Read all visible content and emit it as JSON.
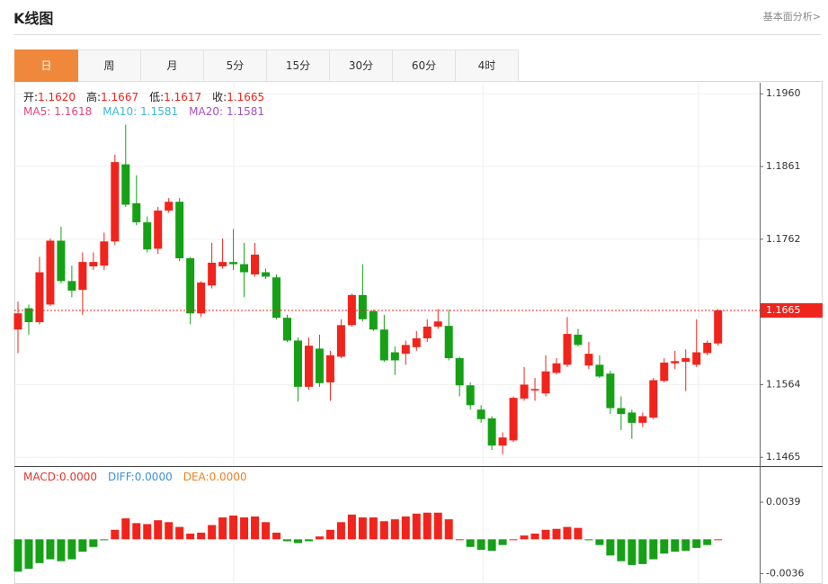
{
  "header": {
    "title": "K线图",
    "link": "基本面分析>"
  },
  "tabs": [
    {
      "label": "日",
      "active": true
    },
    {
      "label": "周"
    },
    {
      "label": "月"
    },
    {
      "label": "5分"
    },
    {
      "label": "15分"
    },
    {
      "label": "30分"
    },
    {
      "label": "60分"
    },
    {
      "label": "4时"
    }
  ],
  "chart_data": [
    {
      "type": "candlestick",
      "legend": [
        {
          "label": "开:",
          "value": "1.1620"
        },
        {
          "label": "高:",
          "value": "1.1667"
        },
        {
          "label": "低:",
          "value": "1.1617"
        },
        {
          "label": "收:",
          "value": "1.1665"
        }
      ],
      "ma_legend": [
        {
          "name": "MA5:",
          "value": "1.1618",
          "color": "#e5457d"
        },
        {
          "name": "MA10:",
          "value": "1.1581",
          "color": "#3bb8d6"
        },
        {
          "name": "MA20:",
          "value": "1.1581",
          "color": "#a54fc4"
        }
      ],
      "up_color": "#f0241c",
      "down_color": "#16a016",
      "open": [
        1.1639,
        1.1668,
        1.1649,
        1.1673,
        1.176,
        1.1705,
        1.1693,
        1.1725,
        1.1726,
        1.1759,
        1.1864,
        1.1811,
        1.1785,
        1.1749,
        1.1801,
        1.1813,
        1.1736,
        1.1661,
        1.1699,
        1.1725,
        1.1731,
        1.1728,
        1.1714,
        1.1717,
        1.171,
        1.1655,
        1.1624,
        1.1561,
        1.1613,
        1.1567,
        1.1602,
        1.1645,
        1.1686,
        1.1664,
        1.1639,
        1.1608,
        1.1606,
        1.1615,
        1.1627,
        1.1643,
        1.1644,
        1.16,
        1.1563,
        1.153,
        1.1518,
        1.1481,
        1.1488,
        1.1545,
        1.1556,
        1.1552,
        1.158,
        1.1591,
        1.1632,
        1.159,
        1.1591,
        1.1579,
        1.1532,
        1.1526,
        1.1512,
        1.1519,
        1.1569,
        1.1593,
        1.1595,
        1.1591,
        1.1607,
        1.162
      ],
      "high": [
        1.1677,
        1.1673,
        1.1738,
        1.1763,
        1.1779,
        1.1726,
        1.1744,
        1.1744,
        1.1771,
        1.1877,
        1.1918,
        1.1849,
        1.1793,
        1.1806,
        1.1818,
        1.1818,
        1.1738,
        1.1705,
        1.1757,
        1.1763,
        1.1776,
        1.1757,
        1.1757,
        1.1722,
        1.1714,
        1.1659,
        1.1628,
        1.1628,
        1.1632,
        1.161,
        1.1653,
        1.1688,
        1.1728,
        1.1666,
        1.1659,
        1.1616,
        1.1624,
        1.1637,
        1.1653,
        1.1667,
        1.1666,
        1.1602,
        1.1567,
        1.1536,
        1.1521,
        1.1499,
        1.1548,
        1.1588,
        1.1573,
        1.1604,
        1.16,
        1.1656,
        1.164,
        1.1622,
        1.1604,
        1.1583,
        1.1548,
        1.153,
        1.1526,
        1.1573,
        1.16,
        1.161,
        1.1612,
        1.1653,
        1.1624,
        1.1667
      ],
      "low": [
        1.1607,
        1.1632,
        1.1646,
        1.1671,
        1.1702,
        1.1683,
        1.1659,
        1.172,
        1.172,
        1.1754,
        1.1806,
        1.1781,
        1.1744,
        1.1742,
        1.1798,
        1.1732,
        1.1646,
        1.1656,
        1.1695,
        1.1722,
        1.172,
        1.1683,
        1.1711,
        1.1708,
        1.1653,
        1.1622,
        1.1541,
        1.1557,
        1.1561,
        1.1542,
        1.16,
        1.1643,
        1.165,
        1.1637,
        1.1595,
        1.1577,
        1.1591,
        1.161,
        1.1622,
        1.164,
        1.1597,
        1.1548,
        1.153,
        1.1512,
        1.1475,
        1.1469,
        1.1486,
        1.1542,
        1.1542,
        1.1548,
        1.1578,
        1.1588,
        1.1616,
        1.1585,
        1.1573,
        1.1524,
        1.1502,
        1.149,
        1.1506,
        1.1517,
        1.1567,
        1.1585,
        1.1555,
        1.1588,
        1.1604,
        1.1617
      ],
      "close": [
        1.1661,
        1.1649,
        1.1717,
        1.176,
        1.1705,
        1.1692,
        1.1731,
        1.1731,
        1.1759,
        1.1867,
        1.1809,
        1.1785,
        1.1748,
        1.1801,
        1.1813,
        1.1736,
        1.1661,
        1.1703,
        1.173,
        1.1731,
        1.1728,
        1.1717,
        1.1741,
        1.1711,
        1.1655,
        1.1624,
        1.1561,
        1.1617,
        1.1566,
        1.1604,
        1.1645,
        1.1686,
        1.1653,
        1.1639,
        1.1597,
        1.1597,
        1.1618,
        1.1627,
        1.1643,
        1.165,
        1.16,
        1.1563,
        1.1536,
        1.1517,
        1.1481,
        1.1492,
        1.1546,
        1.1564,
        1.1558,
        1.1582,
        1.1593,
        1.1633,
        1.1618,
        1.1606,
        1.1575,
        1.1532,
        1.1524,
        1.1512,
        1.1521,
        1.157,
        1.1594,
        1.1596,
        1.16,
        1.1608,
        1.1621,
        1.1665
      ],
      "ylim": [
        1.1453,
        1.1975
      ],
      "yticks": [
        {
          "value": 1.196,
          "label": "1.1960"
        },
        1.1861,
        1.1762,
        1.1564,
        1.1465
      ],
      "grid": true,
      "current_price": 1.1665,
      "current_price_color": "#f0241c"
    },
    {
      "type": "bar",
      "legend": [
        {
          "name": "MACD:",
          "value": "0.0000",
          "color": "#e8332a"
        },
        {
          "name": "DIFF:",
          "value": "0.0000",
          "color": "#3a8fdb"
        },
        {
          "name": "DEA:",
          "value": "0.0000",
          "color": "#f07f1f"
        }
      ],
      "up_color": "#f0241c",
      "down_color": "#16a016",
      "values": [
        -0.0034,
        -0.0031,
        -0.0025,
        -0.0021,
        -0.0023,
        -0.0021,
        -0.0013,
        -0.0008,
        -0.0001,
        0.001,
        0.0022,
        0.0017,
        0.0016,
        0.002,
        0.0018,
        0.0013,
        0.0006,
        0.0007,
        0.0015,
        0.0023,
        0.0025,
        0.0023,
        0.0024,
        0.0018,
        0.0007,
        -0.0002,
        -0.0004,
        -0.0002,
        0.0003,
        0.001,
        0.0018,
        0.0026,
        0.0023,
        0.0023,
        0.0019,
        0.0021,
        0.0024,
        0.0027,
        0.0028,
        0.0028,
        0.0021,
        0,
        -0.0008,
        -0.0011,
        -0.0012,
        -0.0006,
        0,
        0.0004,
        0.0006,
        0.001,
        0.0011,
        0.0013,
        0.0012,
        -0.0001,
        -0.0006,
        -0.0017,
        -0.0023,
        -0.0027,
        -0.0026,
        -0.0021,
        -0.0015,
        -0.0013,
        -0.0012,
        -0.0009,
        -0.0006,
        0
      ],
      "ylim": [
        -0.0046,
        0.0075
      ],
      "yticks": [
        0.0039,
        -0.0036
      ]
    }
  ]
}
